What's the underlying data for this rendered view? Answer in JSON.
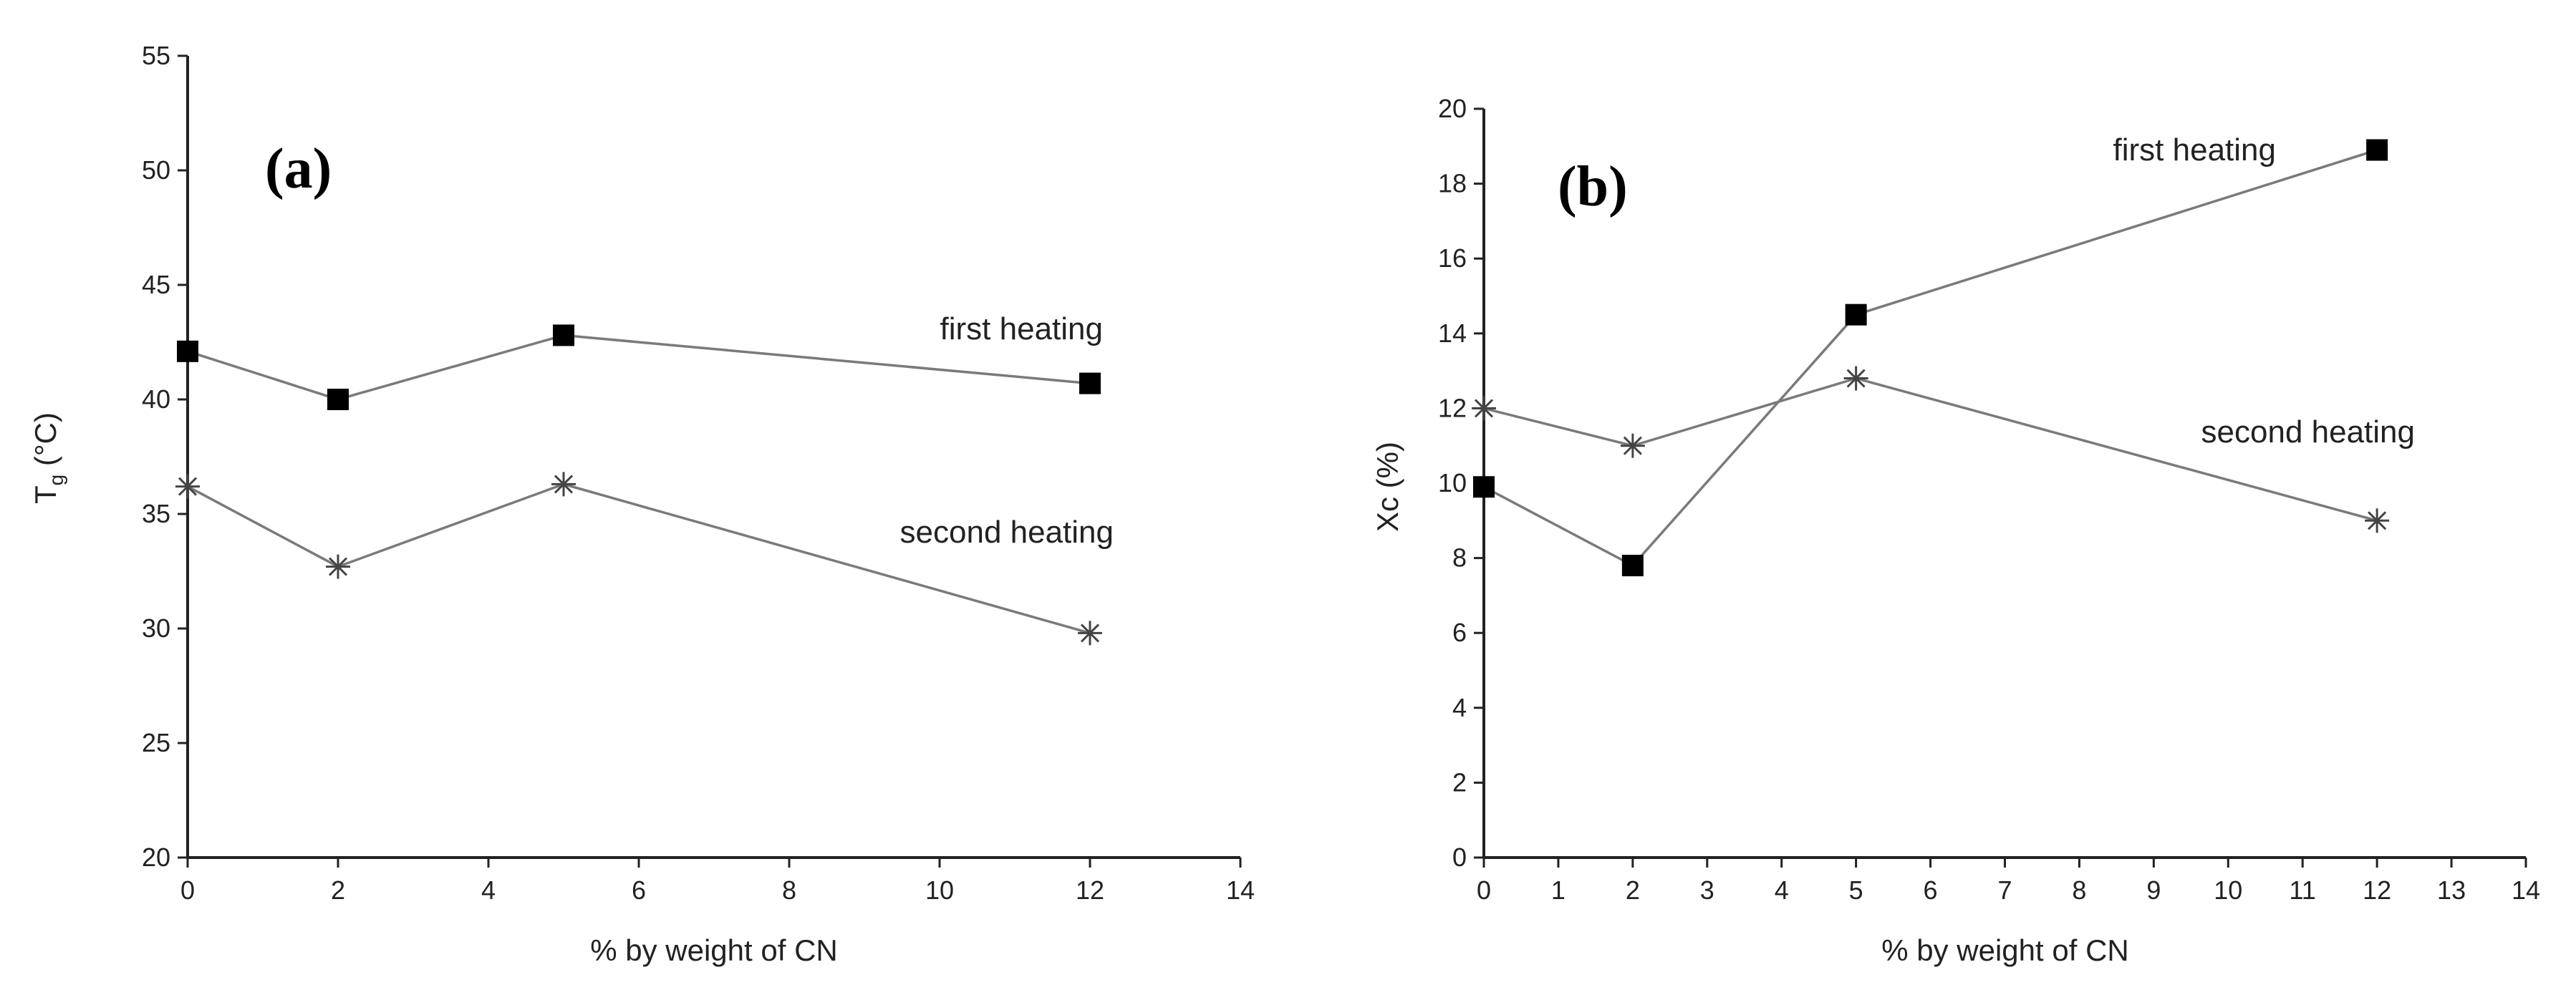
{
  "chart_data": [
    {
      "type": "line",
      "panel_label": "(a)",
      "title": "",
      "xlabel": "% by weight of CN",
      "ylabel": "Tg (°C)",
      "ylabel_main": "T",
      "ylabel_sub": "g",
      "ylabel_unit": " (°C)",
      "xlim": [
        0,
        14
      ],
      "ylim": [
        20,
        55
      ],
      "xticks": [
        0,
        2,
        4,
        6,
        8,
        10,
        12,
        14
      ],
      "yticks": [
        20,
        25,
        30,
        35,
        40,
        45,
        50,
        55
      ],
      "grid": false,
      "series": [
        {
          "name": "first heating",
          "marker": "square",
          "x": [
            0,
            2,
            5,
            12
          ],
          "values": [
            42.1,
            40.0,
            42.8,
            40.7
          ]
        },
        {
          "name": "second heating",
          "marker": "asterisk",
          "x": [
            0,
            2,
            5,
            12
          ],
          "values": [
            36.2,
            32.7,
            36.3,
            29.8
          ]
        }
      ]
    },
    {
      "type": "line",
      "panel_label": "(b)",
      "title": "",
      "xlabel": "% by weight of CN",
      "ylabel": "Xc (%)",
      "xlim": [
        0,
        14
      ],
      "ylim": [
        0,
        20
      ],
      "xticks": [
        0,
        1,
        2,
        3,
        4,
        5,
        6,
        7,
        8,
        9,
        10,
        11,
        12,
        13,
        14
      ],
      "yticks": [
        0,
        2,
        4,
        6,
        8,
        10,
        12,
        14,
        16,
        18,
        20
      ],
      "grid": false,
      "series": [
        {
          "name": "first heating",
          "marker": "square",
          "x": [
            0,
            2,
            5,
            12
          ],
          "values": [
            9.9,
            7.8,
            14.5,
            18.9
          ]
        },
        {
          "name": "second heating",
          "marker": "asterisk",
          "x": [
            0,
            2,
            5,
            12
          ],
          "values": [
            12.0,
            11.0,
            12.8,
            9.0
          ]
        }
      ]
    }
  ]
}
